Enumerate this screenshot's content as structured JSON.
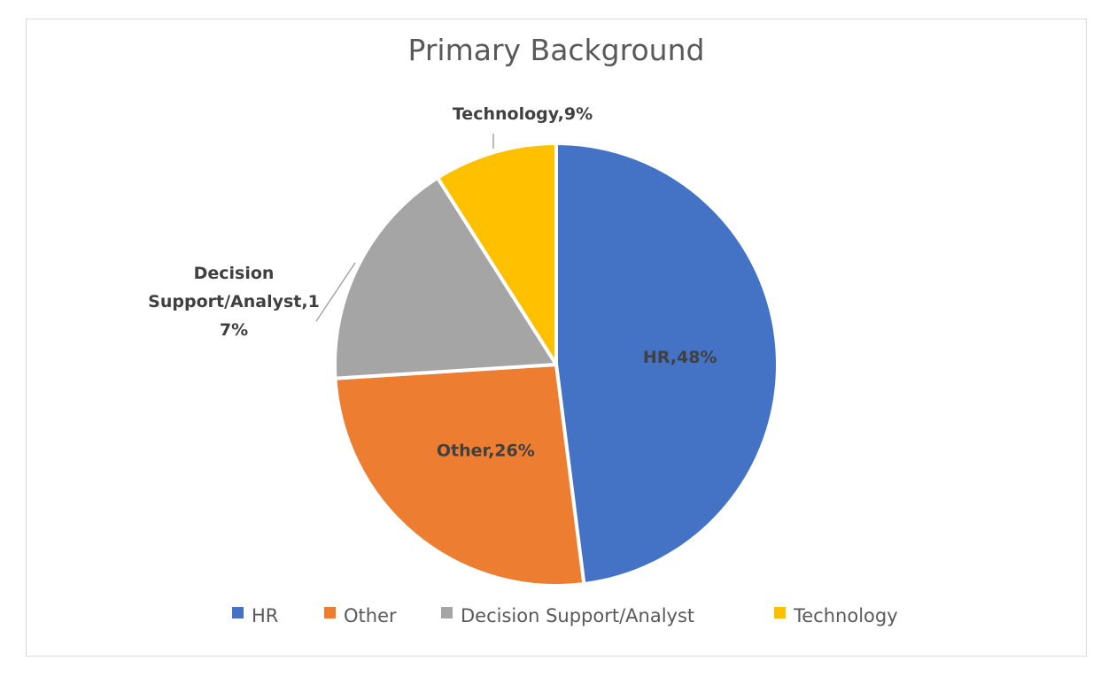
{
  "chart_data": {
    "type": "pie",
    "title": "Primary Background",
    "categories": [
      "HR",
      "Other",
      "Decision Support/Analyst",
      "Technology"
    ],
    "values": [
      48,
      26,
      17,
      9
    ],
    "unit": "%",
    "colors": [
      "#4472c4",
      "#ed7d31",
      "#a5a5a5",
      "#ffc000"
    ],
    "data_labels": [
      [
        "HR,48%"
      ],
      [
        "Other,26%"
      ],
      [
        "Decision",
        "Support/Analyst,1",
        "7%"
      ],
      [
        "Technology,9%"
      ]
    ],
    "legend": {
      "position": "bottom",
      "entries": [
        "HR",
        "Other",
        "Decision Support/Analyst",
        "Technology"
      ]
    }
  }
}
